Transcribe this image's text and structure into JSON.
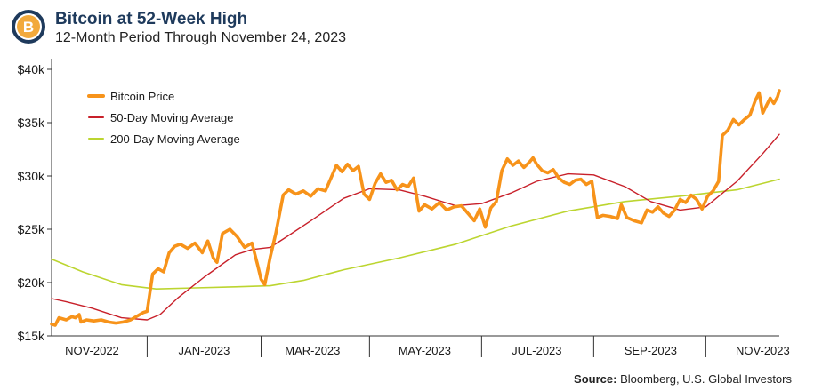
{
  "header": {
    "title": "Bitcoin at 52-Week High",
    "subtitle": "12-Month Period Through November 24, 2023",
    "logo_icon": "bitcoin-logo-icon",
    "logo_letter": "B"
  },
  "source": {
    "label": "Source:",
    "text": "Bloomberg, U.S. Global Investors"
  },
  "colors": {
    "price": "#f7931a",
    "ma50": "#c8202a",
    "ma200": "#bcd530",
    "axis": "#333333",
    "logo_ring": "#1e3a5c",
    "logo_fill": "#f2a93b"
  },
  "chart_data": {
    "type": "line",
    "x_start": "2022-10-24",
    "x_end": "2023-11-24",
    "ylim": [
      15000,
      41000
    ],
    "y_ticks": [
      15000,
      20000,
      25000,
      30000,
      35000,
      40000
    ],
    "y_tick_labels": [
      "$15k",
      "$20k",
      "$25k",
      "$30k",
      "$35k",
      "$40k"
    ],
    "x_tick_labels": [
      "NOV-2022",
      "JAN-2023",
      "MAR-2023",
      "MAY-2023",
      "JUL-2023",
      "SEP-2023",
      "NOV-2023"
    ],
    "x_tick_label_dates": [
      "2022-11-15",
      "2023-01-15",
      "2023-03-15",
      "2023-05-15",
      "2023-07-15",
      "2023-09-15",
      "2023-11-15"
    ],
    "x_separator_dates": [
      "2022-12-15",
      "2023-02-15",
      "2023-04-15",
      "2023-06-15",
      "2023-08-15",
      "2023-10-15"
    ],
    "legend_position": "top-left",
    "series": [
      {
        "name": "Bitcoin Price",
        "color": "#f7931a",
        "points": [
          [
            "2022-10-24",
            16100
          ],
          [
            "2022-10-26",
            16000
          ],
          [
            "2022-10-28",
            16700
          ],
          [
            "2022-11-01",
            16500
          ],
          [
            "2022-11-04",
            16800
          ],
          [
            "2022-11-06",
            16700
          ],
          [
            "2022-11-08",
            17000
          ],
          [
            "2022-11-09",
            16300
          ],
          [
            "2022-11-12",
            16500
          ],
          [
            "2022-11-16",
            16400
          ],
          [
            "2022-11-20",
            16500
          ],
          [
            "2022-11-24",
            16300
          ],
          [
            "2022-11-28",
            16200
          ],
          [
            "2022-12-02",
            16300
          ],
          [
            "2022-12-06",
            16500
          ],
          [
            "2022-12-10",
            16900
          ],
          [
            "2022-12-13",
            17200
          ],
          [
            "2022-12-15",
            17300
          ],
          [
            "2022-12-18",
            20800
          ],
          [
            "2022-12-21",
            21300
          ],
          [
            "2022-12-24",
            21000
          ],
          [
            "2022-12-27",
            22800
          ],
          [
            "2022-12-30",
            23400
          ],
          [
            "2023-01-02",
            23600
          ],
          [
            "2023-01-06",
            23200
          ],
          [
            "2023-01-10",
            23700
          ],
          [
            "2023-01-14",
            22800
          ],
          [
            "2023-01-17",
            23900
          ],
          [
            "2023-01-20",
            22300
          ],
          [
            "2023-01-22",
            21900
          ],
          [
            "2023-01-25",
            24600
          ],
          [
            "2023-01-29",
            25000
          ],
          [
            "2023-02-02",
            24300
          ],
          [
            "2023-02-06",
            23300
          ],
          [
            "2023-02-10",
            23700
          ],
          [
            "2023-02-13",
            21700
          ],
          [
            "2023-02-15",
            20300
          ],
          [
            "2023-02-17",
            19800
          ],
          [
            "2023-02-20",
            22400
          ],
          [
            "2023-02-23",
            24600
          ],
          [
            "2023-02-27",
            28200
          ],
          [
            "2023-03-02",
            28700
          ],
          [
            "2023-03-06",
            28300
          ],
          [
            "2023-03-10",
            28600
          ],
          [
            "2023-03-14",
            28100
          ],
          [
            "2023-03-18",
            28800
          ],
          [
            "2023-03-22",
            28600
          ],
          [
            "2023-03-25",
            29800
          ],
          [
            "2023-03-28",
            31000
          ],
          [
            "2023-03-31",
            30400
          ],
          [
            "2023-04-03",
            31100
          ],
          [
            "2023-04-06",
            30500
          ],
          [
            "2023-04-09",
            30900
          ],
          [
            "2023-04-12",
            28300
          ],
          [
            "2023-04-15",
            27800
          ],
          [
            "2023-04-18",
            29300
          ],
          [
            "2023-04-21",
            30200
          ],
          [
            "2023-04-24",
            29400
          ],
          [
            "2023-04-27",
            29600
          ],
          [
            "2023-04-30",
            28700
          ],
          [
            "2023-05-03",
            29200
          ],
          [
            "2023-05-06",
            29000
          ],
          [
            "2023-05-09",
            29800
          ],
          [
            "2023-05-12",
            26700
          ],
          [
            "2023-05-15",
            27300
          ],
          [
            "2023-05-19",
            26900
          ],
          [
            "2023-05-23",
            27500
          ],
          [
            "2023-05-27",
            26800
          ],
          [
            "2023-05-31",
            27100
          ],
          [
            "2023-06-04",
            27200
          ],
          [
            "2023-06-08",
            26400
          ],
          [
            "2023-06-11",
            25800
          ],
          [
            "2023-06-14",
            26900
          ],
          [
            "2023-06-17",
            25200
          ],
          [
            "2023-06-20",
            27000
          ],
          [
            "2023-06-23",
            27600
          ],
          [
            "2023-06-26",
            30500
          ],
          [
            "2023-06-29",
            31600
          ],
          [
            "2023-07-02",
            31000
          ],
          [
            "2023-07-05",
            31400
          ],
          [
            "2023-07-08",
            30800
          ],
          [
            "2023-07-11",
            31300
          ],
          [
            "2023-07-13",
            31700
          ],
          [
            "2023-07-15",
            31100
          ],
          [
            "2023-07-18",
            30500
          ],
          [
            "2023-07-21",
            30300
          ],
          [
            "2023-07-24",
            30600
          ],
          [
            "2023-07-27",
            29800
          ],
          [
            "2023-07-30",
            29400
          ],
          [
            "2023-08-02",
            29200
          ],
          [
            "2023-08-05",
            29600
          ],
          [
            "2023-08-08",
            29700
          ],
          [
            "2023-08-11",
            29200
          ],
          [
            "2023-08-14",
            29500
          ],
          [
            "2023-08-17",
            26100
          ],
          [
            "2023-08-20",
            26300
          ],
          [
            "2023-08-24",
            26200
          ],
          [
            "2023-08-28",
            26000
          ],
          [
            "2023-08-30",
            27300
          ],
          [
            "2023-09-02",
            26100
          ],
          [
            "2023-09-06",
            25800
          ],
          [
            "2023-09-10",
            25600
          ],
          [
            "2023-09-13",
            26800
          ],
          [
            "2023-09-16",
            26600
          ],
          [
            "2023-09-19",
            27100
          ],
          [
            "2023-09-22",
            26500
          ],
          [
            "2023-09-25",
            26200
          ],
          [
            "2023-09-28",
            26800
          ],
          [
            "2023-10-01",
            27800
          ],
          [
            "2023-10-04",
            27500
          ],
          [
            "2023-10-07",
            28200
          ],
          [
            "2023-10-10",
            27800
          ],
          [
            "2023-10-13",
            26900
          ],
          [
            "2023-10-16",
            28100
          ],
          [
            "2023-10-19",
            28600
          ],
          [
            "2023-10-22",
            29500
          ],
          [
            "2023-10-24",
            33800
          ],
          [
            "2023-10-27",
            34300
          ],
          [
            "2023-10-30",
            35300
          ],
          [
            "2023-11-02",
            34800
          ],
          [
            "2023-11-05",
            35300
          ],
          [
            "2023-11-08",
            35700
          ],
          [
            "2023-11-11",
            37100
          ],
          [
            "2023-11-13",
            37800
          ],
          [
            "2023-11-15",
            35900
          ],
          [
            "2023-11-17",
            36600
          ],
          [
            "2023-11-19",
            37300
          ],
          [
            "2023-11-21",
            36800
          ],
          [
            "2023-11-23",
            37400
          ],
          [
            "2023-11-24",
            38000
          ]
        ]
      },
      {
        "name": "50-Day Moving Average",
        "color": "#c8202a",
        "points": [
          [
            "2022-10-24",
            18500
          ],
          [
            "2022-11-01",
            18200
          ],
          [
            "2022-11-15",
            17600
          ],
          [
            "2022-12-01",
            16700
          ],
          [
            "2022-12-15",
            16500
          ],
          [
            "2022-12-22",
            17000
          ],
          [
            "2023-01-01",
            18600
          ],
          [
            "2023-01-15",
            20500
          ],
          [
            "2023-02-01",
            22600
          ],
          [
            "2023-02-10",
            23100
          ],
          [
            "2023-02-20",
            23300
          ],
          [
            "2023-03-01",
            24300
          ],
          [
            "2023-03-15",
            25900
          ],
          [
            "2023-04-01",
            27900
          ],
          [
            "2023-04-15",
            28800
          ],
          [
            "2023-05-01",
            28700
          ],
          [
            "2023-05-15",
            28100
          ],
          [
            "2023-06-01",
            27200
          ],
          [
            "2023-06-15",
            27400
          ],
          [
            "2023-07-01",
            28400
          ],
          [
            "2023-07-15",
            29500
          ],
          [
            "2023-08-01",
            30200
          ],
          [
            "2023-08-15",
            30100
          ],
          [
            "2023-09-01",
            29000
          ],
          [
            "2023-09-15",
            27600
          ],
          [
            "2023-10-01",
            26800
          ],
          [
            "2023-10-15",
            27100
          ],
          [
            "2023-11-01",
            29500
          ],
          [
            "2023-11-15",
            32100
          ],
          [
            "2023-11-24",
            33900
          ]
        ]
      },
      {
        "name": "200-Day Moving Average",
        "color": "#bcd530",
        "points": [
          [
            "2022-10-24",
            22200
          ],
          [
            "2022-11-10",
            21000
          ],
          [
            "2022-12-01",
            19800
          ],
          [
            "2022-12-20",
            19400
          ],
          [
            "2023-01-10",
            19500
          ],
          [
            "2023-02-01",
            19600
          ],
          [
            "2023-02-20",
            19700
          ],
          [
            "2023-03-10",
            20200
          ],
          [
            "2023-04-01",
            21200
          ],
          [
            "2023-05-01",
            22300
          ],
          [
            "2023-06-01",
            23600
          ],
          [
            "2023-07-01",
            25300
          ],
          [
            "2023-08-01",
            26700
          ],
          [
            "2023-09-01",
            27600
          ],
          [
            "2023-10-01",
            28100
          ],
          [
            "2023-11-01",
            28700
          ],
          [
            "2023-11-24",
            29700
          ]
        ]
      }
    ]
  }
}
